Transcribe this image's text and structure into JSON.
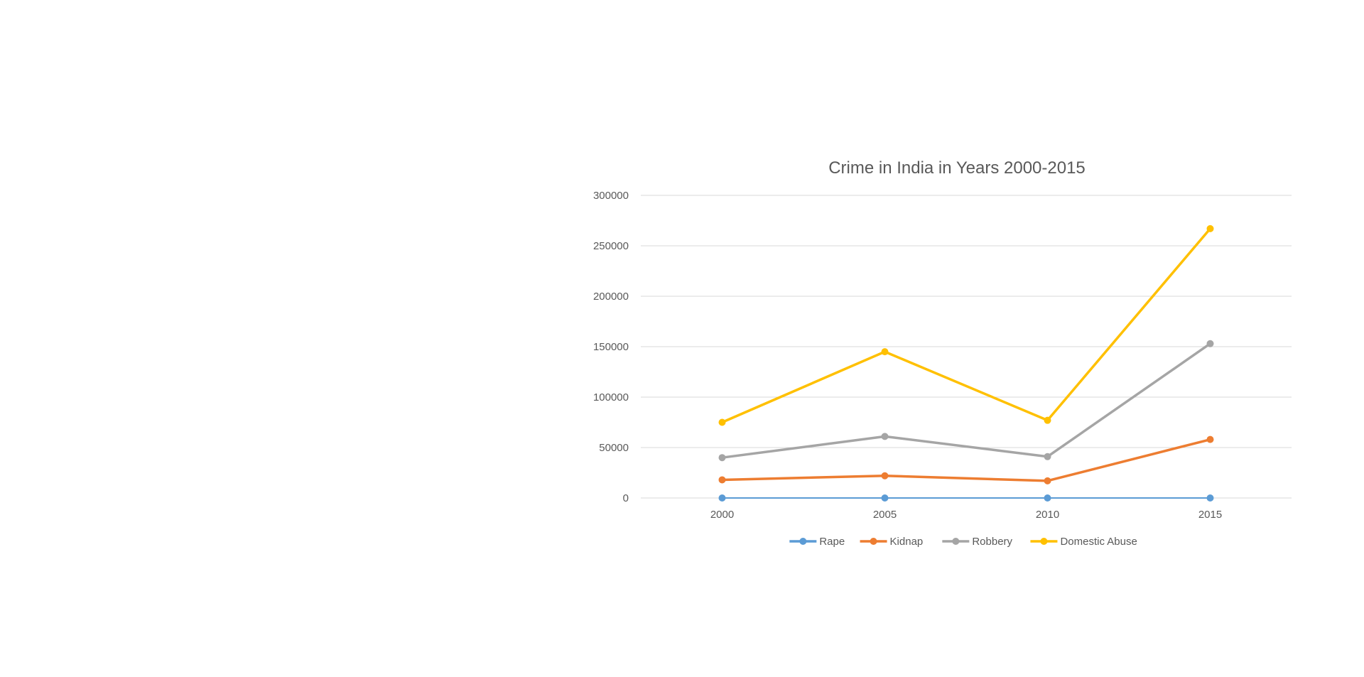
{
  "chart_data": {
    "type": "line",
    "title": "Crime in India in Years 2000-2015",
    "xlabel": "",
    "ylabel": "",
    "categories": [
      "2000",
      "2005",
      "2010",
      "2015"
    ],
    "ylim": [
      0,
      300000
    ],
    "yticks": [
      "0",
      "50000",
      "100000",
      "150000",
      "200000",
      "250000",
      "300000"
    ],
    "grid": true,
    "legend_position": "bottom",
    "series": [
      {
        "name": "Rape",
        "color": "#5b9bd5",
        "values": [
          0,
          0,
          0,
          0
        ]
      },
      {
        "name": "Kidnap",
        "color": "#ed7d31",
        "values": [
          18000,
          22000,
          17000,
          58000
        ]
      },
      {
        "name": "Robbery",
        "color": "#a5a5a5",
        "values": [
          40000,
          61000,
          41000,
          153000
        ]
      },
      {
        "name": "Domestic Abuse",
        "color": "#ffc000",
        "values": [
          75000,
          145000,
          77000,
          267000
        ]
      }
    ]
  }
}
